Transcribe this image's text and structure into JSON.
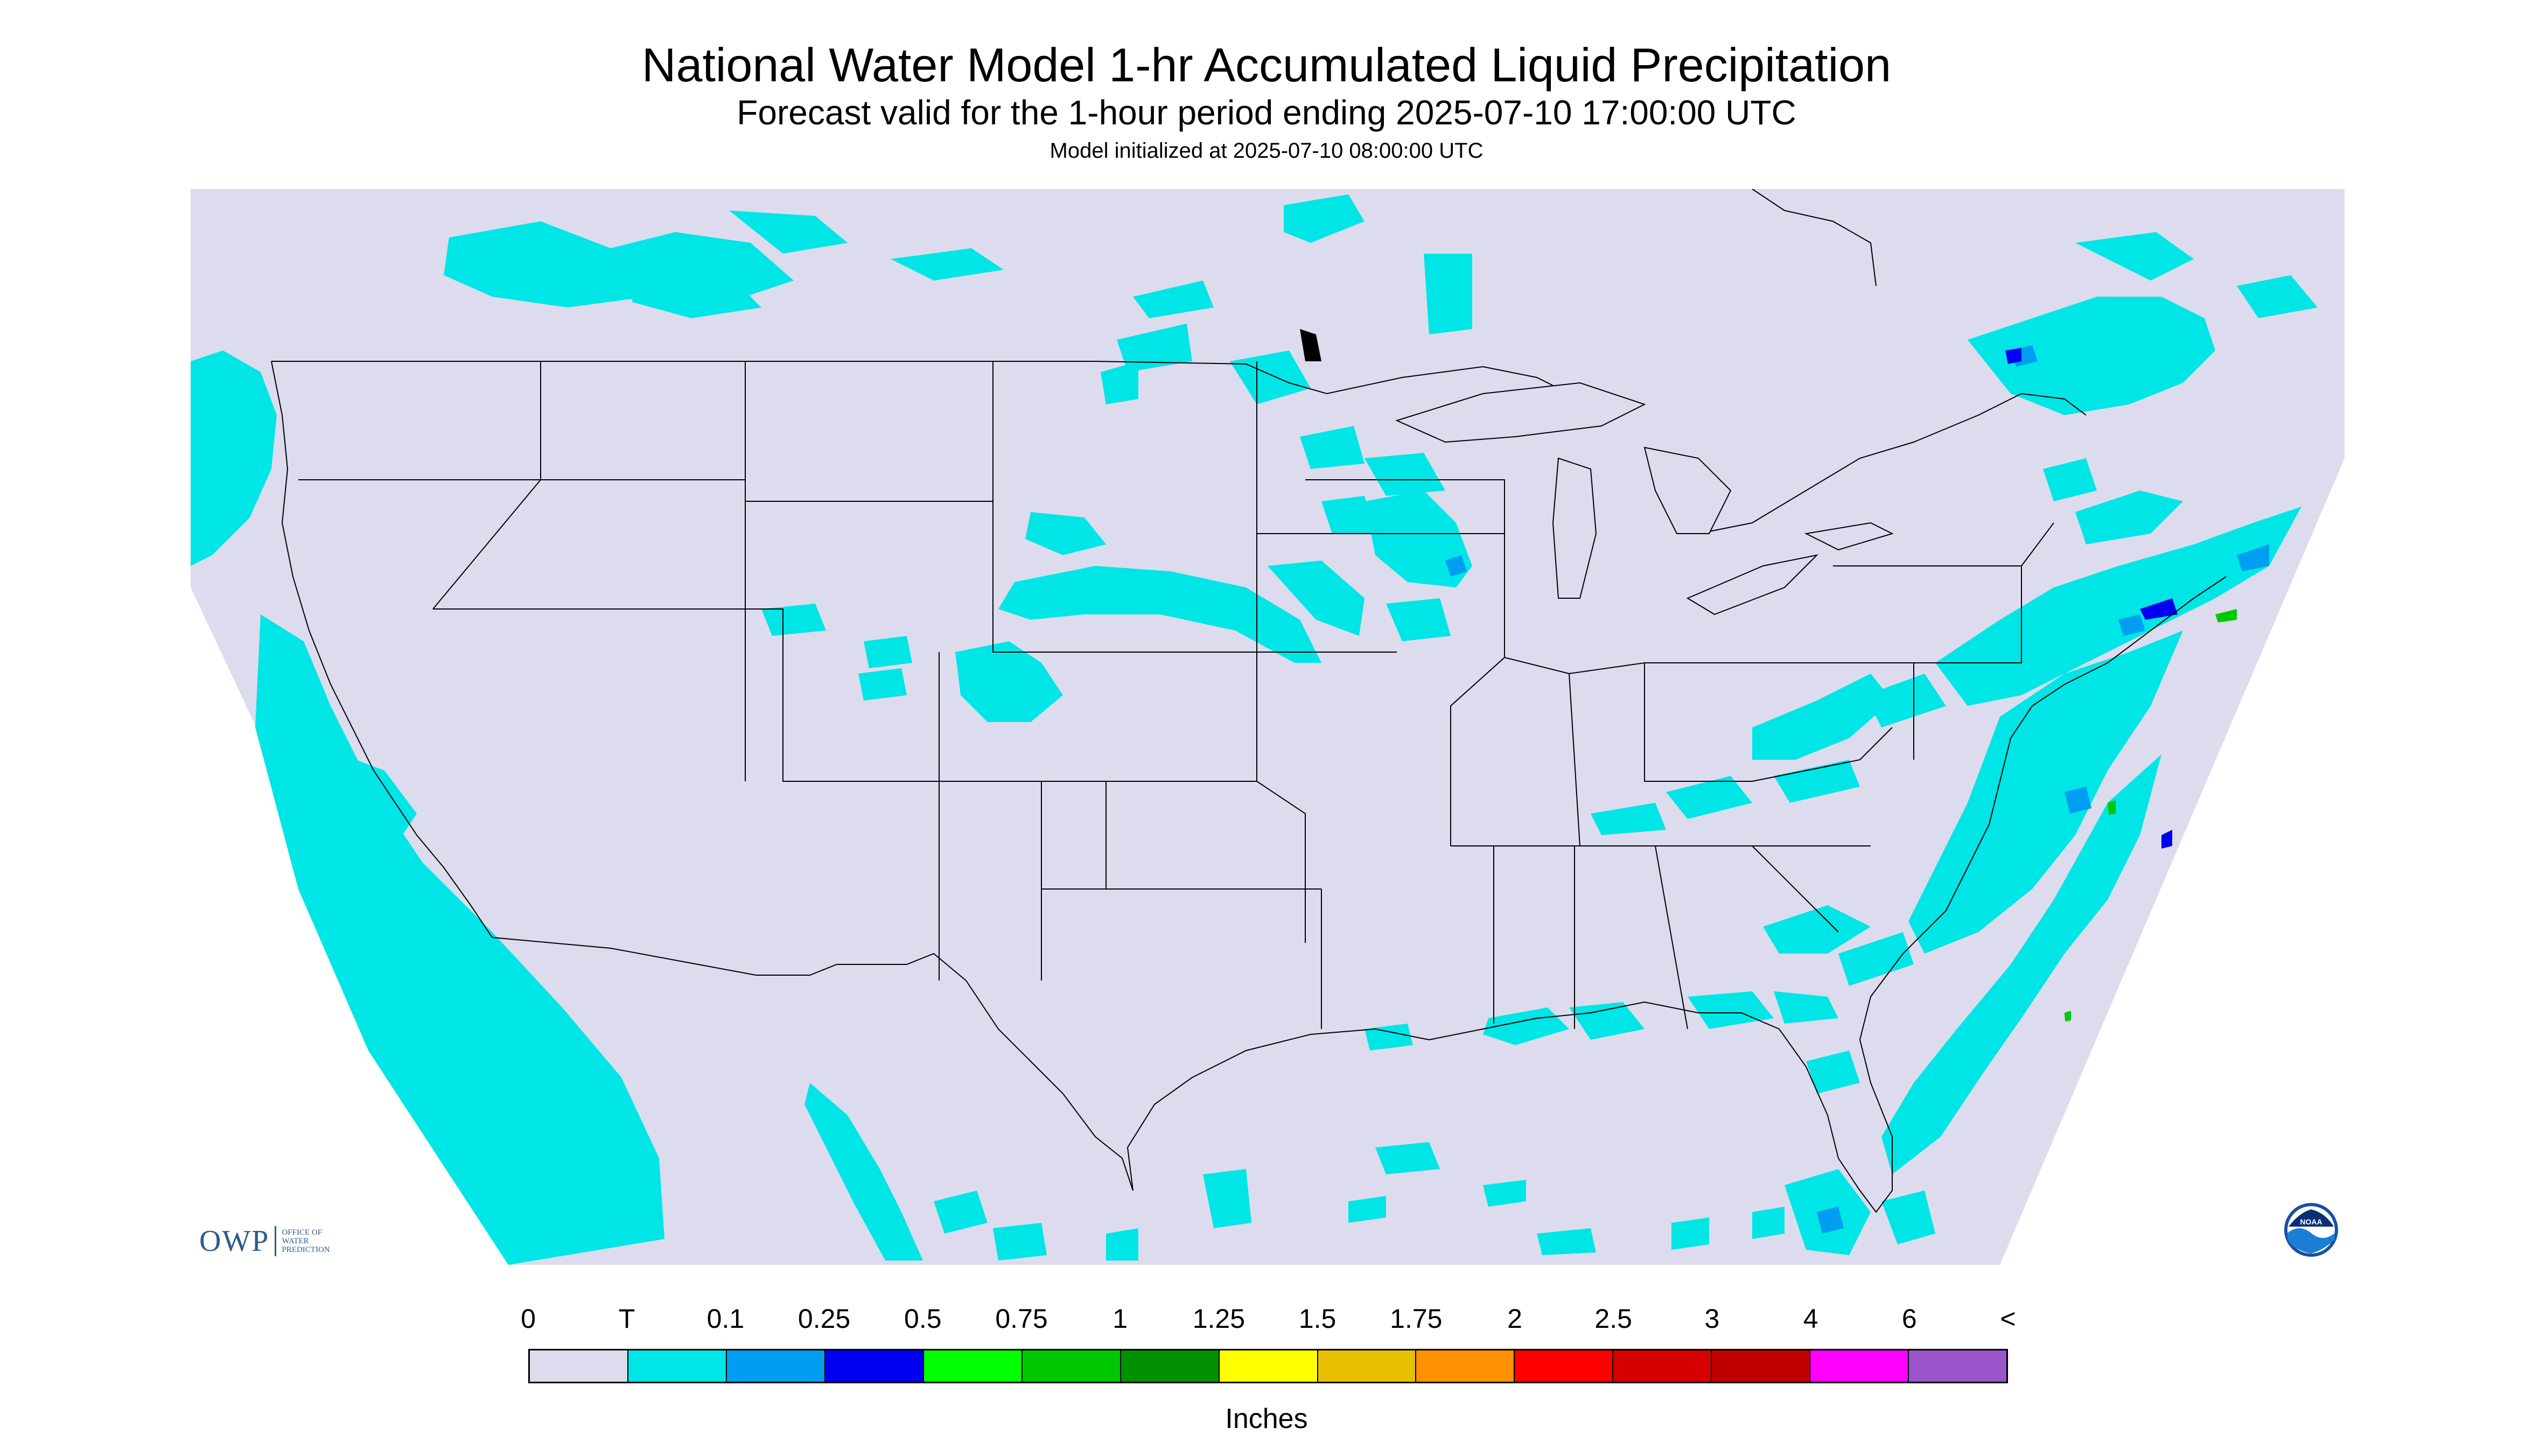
{
  "title": "National Water Model 1-hr Accumulated Liquid Precipitation",
  "subtitle": "Forecast valid for the 1-hour period ending 2025-07-10 17:00:00 UTC",
  "initialized": "Model initialized at 2025-07-10 08:00:00 UTC",
  "legend": {
    "labels": [
      "0",
      "T",
      "0.1",
      "0.25",
      "0.5",
      "0.75",
      "1",
      "1.25",
      "1.5",
      "1.75",
      "2",
      "2.5",
      "3",
      "4",
      "6",
      "<"
    ],
    "colors": [
      "#dcdcee",
      "#00e5e5",
      "#009ef0",
      "#0000f0",
      "#00ff00",
      "#00c800",
      "#009000",
      "#ffff00",
      "#e7c000",
      "#ff9000",
      "#ff0000",
      "#d60000",
      "#c00000",
      "#ff00ff",
      "#9955c9"
    ],
    "units": "Inches"
  },
  "logos": {
    "owp_abbrev": "OWP",
    "owp_text": "OFFICE OF\nWATER\nPREDICTION",
    "noaa_text": "NOAA"
  },
  "map": {
    "background_color": "#dcdcee",
    "trace_color": "#00e5e5",
    "light_color": "#009ef0",
    "moderate_color": "#0000f0",
    "heavy_color": "#00c800",
    "precip_areas": [
      "Pacific Northwest coast",
      "Southern British Columbia",
      "Alberta / Montana border",
      "Saskatchewan",
      "Manitoba / Minnesota",
      "Wisconsin / Minnesota",
      "Nebraska / South Dakota",
      "Colorado / Kansas",
      "Ohio Valley",
      "Mid-Atlantic / New England",
      "Atlantic offshore",
      "Gulf Coast",
      "Florida",
      "Baja California / Pacific offshore",
      "Sierra Madre (Mexico)",
      "Quebec / New Brunswick"
    ]
  }
}
